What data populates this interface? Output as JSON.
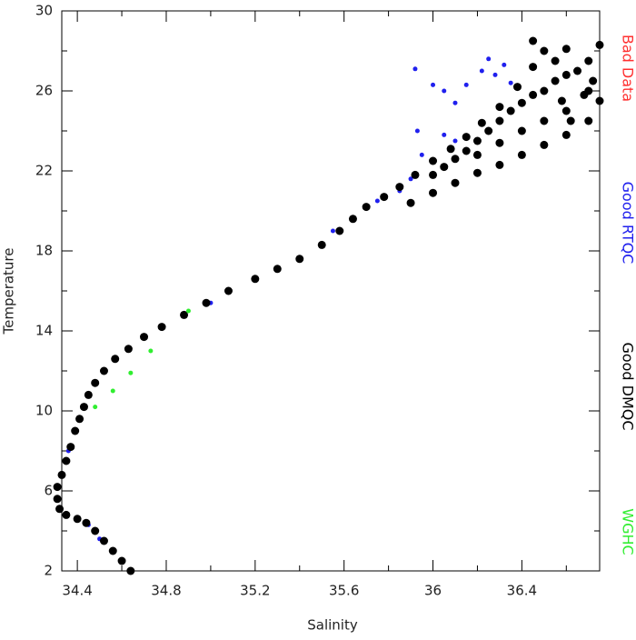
{
  "chart_data": {
    "type": "scatter",
    "x_label": "Salinity",
    "y_label": "Temperature",
    "xlim": [
      34.33,
      36.75
    ],
    "ylim": [
      2,
      30
    ],
    "xticks": [
      34.4,
      34.8,
      35.2,
      35.6,
      36.0,
      36.4
    ],
    "xticks_minor": [
      34.6,
      35.0,
      35.4,
      35.8,
      36.2,
      36.6
    ],
    "yticks": [
      2,
      6,
      10,
      14,
      18,
      22,
      26,
      30
    ],
    "yticks_minor": [
      4,
      8,
      12,
      16,
      20,
      24,
      28
    ],
    "legend": "right",
    "series": [
      {
        "name": "Bad Data",
        "color": "#ff3030",
        "x": [],
        "y": []
      },
      {
        "name": "Good RTQC",
        "color": "#2020ee",
        "x": [
          34.5,
          34.45,
          34.36,
          34.37,
          35.0,
          35.55,
          35.75,
          35.85,
          35.93,
          35.92,
          36.0,
          36.05,
          36.1,
          36.15,
          36.22,
          36.25,
          36.32,
          36.35,
          36.28,
          36.05,
          35.95,
          36.1,
          35.9
        ],
        "y": [
          3.6,
          4.3,
          8.0,
          8.2,
          15.4,
          19.0,
          20.5,
          21.0,
          24.0,
          27.1,
          26.3,
          26.0,
          25.4,
          26.3,
          27.0,
          27.6,
          27.3,
          26.4,
          26.8,
          23.8,
          22.8,
          23.5,
          21.6
        ]
      },
      {
        "name": "Good DMQC",
        "color": "#000000",
        "x": [
          34.64,
          34.6,
          34.56,
          34.52,
          34.48,
          34.44,
          34.4,
          34.35,
          34.32,
          34.31,
          34.31,
          34.33,
          34.35,
          34.37,
          34.39,
          34.41,
          34.43,
          34.45,
          34.48,
          34.52,
          34.57,
          34.63,
          34.7,
          34.78,
          34.88,
          34.98,
          35.08,
          35.2,
          35.3,
          35.4,
          35.5,
          35.58,
          35.64,
          35.7,
          35.78,
          35.85,
          35.92,
          36.0,
          36.08,
          36.15,
          36.22,
          36.3,
          36.38,
          36.45,
          36.5,
          36.45,
          35.9,
          36.0,
          36.1,
          36.2,
          36.3,
          36.4,
          36.5,
          36.6,
          36.7,
          36.75,
          36.72,
          36.7,
          36.75,
          36.6,
          36.55,
          36.6,
          36.5,
          36.4,
          36.3,
          36.2,
          36.1,
          36.0,
          36.6,
          36.5,
          36.4,
          36.3,
          36.2,
          36.65,
          36.7,
          36.55,
          36.45,
          36.35,
          36.25,
          36.15,
          36.05,
          36.62,
          36.68,
          36.58
        ],
        "y": [
          2.0,
          2.5,
          3.0,
          3.5,
          4.0,
          4.4,
          4.6,
          4.8,
          5.1,
          5.6,
          6.2,
          6.8,
          7.5,
          8.2,
          9.0,
          9.6,
          10.2,
          10.8,
          11.4,
          12.0,
          12.6,
          13.1,
          13.7,
          14.2,
          14.8,
          15.4,
          16.0,
          16.6,
          17.1,
          17.6,
          18.3,
          19.0,
          19.6,
          20.2,
          20.7,
          21.2,
          21.8,
          22.5,
          23.1,
          23.7,
          24.4,
          25.2,
          26.2,
          27.2,
          28.0,
          28.5,
          20.4,
          20.9,
          21.4,
          21.9,
          22.3,
          22.8,
          23.3,
          23.8,
          24.5,
          25.5,
          26.5,
          27.5,
          28.3,
          28.1,
          27.5,
          26.8,
          26.0,
          25.4,
          24.5,
          23.5,
          22.6,
          21.8,
          25.0,
          24.5,
          24.0,
          23.4,
          22.8,
          27.0,
          26.0,
          26.5,
          25.8,
          25.0,
          24.0,
          23.0,
          22.2,
          24.5,
          25.8,
          25.5
        ]
      },
      {
        "name": "WGHC",
        "color": "#30ee30",
        "x": [
          34.48,
          34.56,
          34.64,
          34.73,
          34.9
        ],
        "y": [
          10.2,
          11.0,
          11.9,
          13.0,
          15.0
        ]
      }
    ]
  }
}
